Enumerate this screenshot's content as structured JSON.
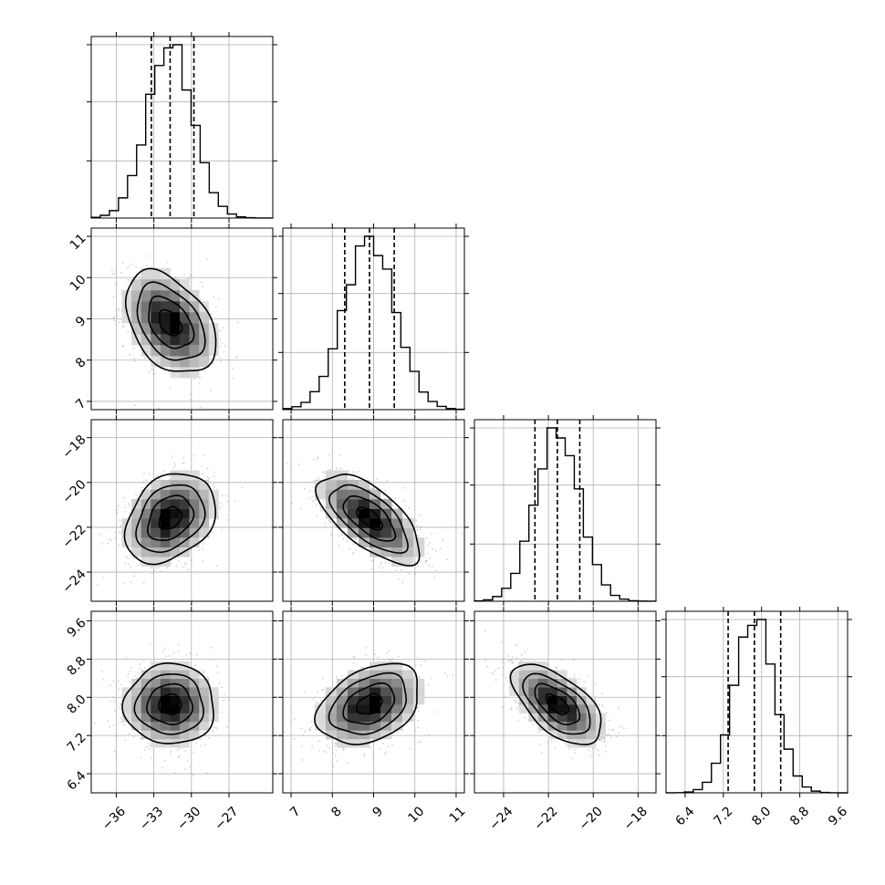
{
  "chart_data": {
    "type": "corner",
    "grid": true,
    "colors": {
      "line": "#000000",
      "grid": "#b0b0b0",
      "scatter": "#9a9a9a"
    },
    "params": [
      {
        "mean": -31.7,
        "sd": 1.8,
        "q16": -33.2,
        "q50": -31.7,
        "q84": -29.8,
        "range": [
          -38,
          -23.5
        ],
        "ticks": [
          -36,
          -33,
          -30,
          -27
        ],
        "tick_labels": [
          "−36",
          "−33",
          "−30",
          "−27"
        ]
      },
      {
        "mean": 8.9,
        "sd": 0.62,
        "q16": 8.3,
        "q50": 8.9,
        "q84": 9.5,
        "range": [
          6.8,
          11.2
        ],
        "ticks": [
          7,
          8,
          9,
          10,
          11
        ],
        "tick_labels": [
          "7",
          "8",
          "9",
          "10",
          "11"
        ]
      },
      {
        "mean": -21.6,
        "sd": 1.0,
        "q16": -22.6,
        "q50": -21.6,
        "q84": -20.6,
        "range": [
          -25.3,
          -17.2
        ],
        "ticks": [
          -24,
          -22,
          -20,
          -18
        ],
        "tick_labels": [
          "−24",
          "−22",
          "−20",
          "−18"
        ]
      },
      {
        "mean": 7.85,
        "sd": 0.42,
        "q16": 7.3,
        "q50": 7.85,
        "q84": 8.4,
        "range": [
          6.0,
          9.8
        ],
        "ticks": [
          6.4,
          7.2,
          8.0,
          8.8,
          9.6
        ],
        "tick_labels": [
          "6.4",
          "7.2",
          "8.0",
          "8.8",
          "9.6"
        ]
      }
    ],
    "correlations": [
      [
        1.0,
        -0.4,
        0.3,
        0.0
      ],
      [
        -0.4,
        1.0,
        -0.65,
        0.35
      ],
      [
        0.3,
        -0.65,
        1.0,
        -0.6
      ],
      [
        0.0,
        0.35,
        -0.6,
        1.0
      ]
    ],
    "contour_levels_sigma": [
      0.5,
      1.0,
      1.5,
      2.0
    ]
  }
}
